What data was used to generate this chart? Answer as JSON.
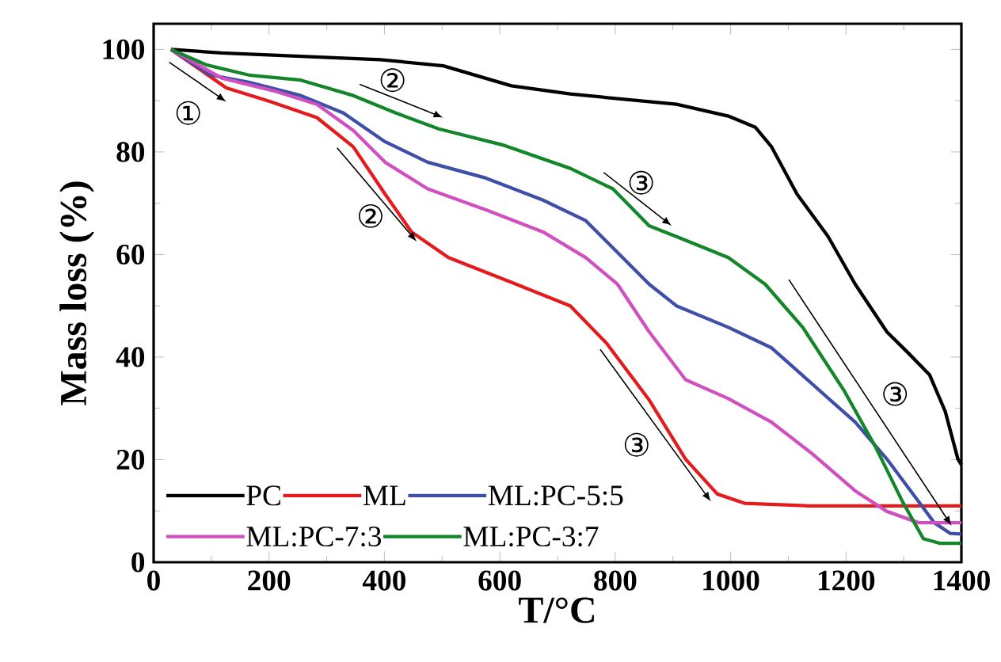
{
  "chart_data": {
    "type": "line",
    "xlabel": "T/°C",
    "ylabel": "Mass loss (%)",
    "xlim": [
      0,
      1400
    ],
    "ylim": [
      0,
      105
    ],
    "xticks": [
      0,
      200,
      400,
      600,
      800,
      1000,
      1200,
      1400
    ],
    "yticks": [
      0,
      20,
      40,
      60,
      80,
      100
    ],
    "legend": "bottom left",
    "marker": "none",
    "line_style": "solid",
    "series": [
      {
        "name": "PC",
        "color": "#000000",
        "x": [
          30,
          118,
          393,
          502,
          620,
          722,
          906,
          996,
          1043,
          1071,
          1115,
          1169,
          1216,
          1271,
          1307,
          1345,
          1372,
          1394,
          1400
        ],
        "values": [
          100,
          99.3,
          98,
          96.8,
          92.9,
          91.3,
          89.3,
          87,
          84.8,
          81,
          71.8,
          63.5,
          54.2,
          44.9,
          40.9,
          36.5,
          29.4,
          20.1,
          19
        ]
      },
      {
        "name": "ML",
        "color": "#e41a1c",
        "x": [
          30,
          126,
          200,
          283,
          346,
          401,
          447,
          511,
          620,
          722,
          785,
          859,
          922,
          977,
          1024,
          1134,
          1271,
          1400
        ],
        "values": [
          100,
          92.5,
          89.9,
          86.7,
          81,
          71.8,
          64.4,
          59.4,
          54.6,
          50,
          42.7,
          31.6,
          20.1,
          13.3,
          11.5,
          11,
          11,
          11
        ]
      },
      {
        "name": "ML:PC-5:5",
        "color": "#3f4fa8",
        "x": [
          30,
          99,
          165,
          255,
          329,
          401,
          475,
          576,
          675,
          749,
          859,
          906,
          996,
          1071,
          1142,
          1216,
          1271,
          1318,
          1353,
          1381,
          1400
        ],
        "values": [
          100,
          95,
          93.6,
          91,
          87.6,
          82,
          78,
          74.9,
          70.6,
          66.6,
          54.2,
          50,
          45.8,
          41.8,
          34.7,
          27.3,
          20.1,
          13,
          7.7,
          5.6,
          5.5
        ]
      },
      {
        "name": "ML:PC-7:3",
        "color": "#d050c0",
        "x": [
          30,
          118,
          209,
          283,
          346,
          401,
          475,
          576,
          675,
          749,
          804,
          859,
          922,
          996,
          1071,
          1142,
          1216,
          1271,
          1326,
          1400
        ],
        "values": [
          100,
          94.4,
          91.9,
          89.3,
          84.2,
          78,
          72.8,
          68.7,
          64.4,
          59.4,
          54.2,
          44.9,
          35.6,
          31.9,
          27.3,
          21.1,
          13.9,
          9.9,
          7.7,
          7.7
        ]
      },
      {
        "name": "ML:PC-3:7",
        "color": "#13862a",
        "x": [
          30,
          91,
          165,
          255,
          346,
          420,
          494,
          604,
          722,
          796,
          859,
          906,
          996,
          1060,
          1125,
          1197,
          1252,
          1298,
          1334,
          1362,
          1400
        ],
        "values": [
          100,
          97,
          95,
          94,
          91,
          87.6,
          84.5,
          81.4,
          76.8,
          72.8,
          65.6,
          63.5,
          59.4,
          54.2,
          45.8,
          33.4,
          22.3,
          11.8,
          4.6,
          3.7,
          3.7
        ]
      }
    ],
    "annotations": [
      "①",
      "②",
      "②",
      "③",
      "③",
      "③"
    ]
  }
}
